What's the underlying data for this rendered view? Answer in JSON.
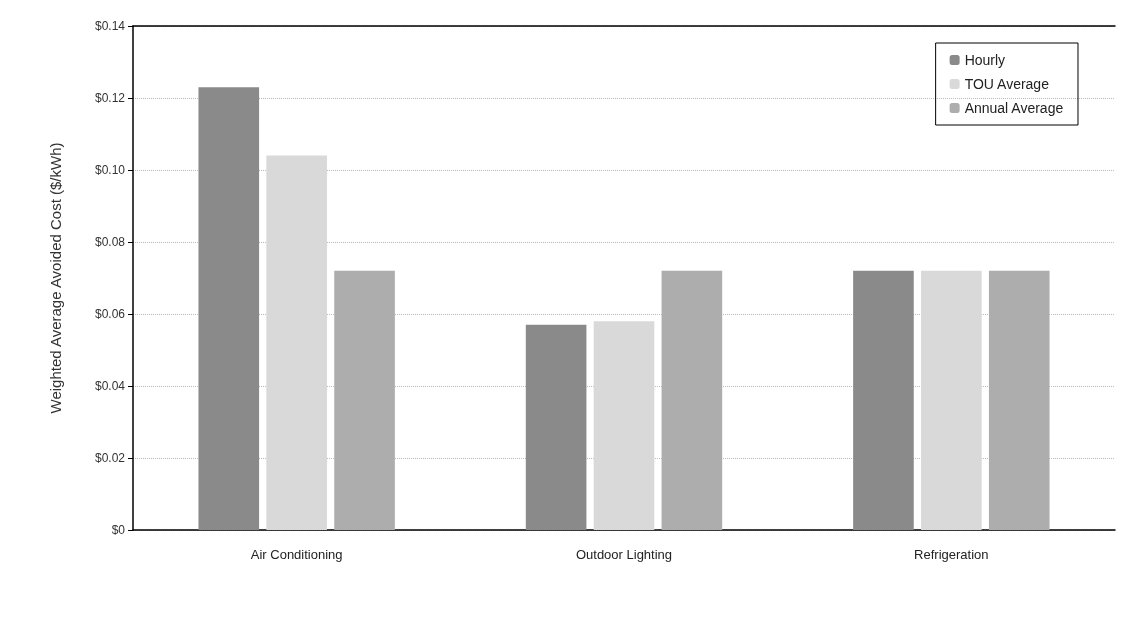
{
  "chart_data": {
    "type": "bar",
    "ylabel": "Weighted Average Avoided Cost ($/kWh)",
    "categories": [
      "Air Conditioning",
      "Outdoor Lighting",
      "Refrigeration"
    ],
    "series": [
      {
        "name": "Hourly",
        "color": "#8a8a8a",
        "values": [
          0.123,
          0.057,
          0.072
        ]
      },
      {
        "name": "TOU Average",
        "color": "#d9d9d9",
        "values": [
          0.104,
          0.058,
          0.072
        ]
      },
      {
        "name": "Annual Average",
        "color": "#adadad",
        "values": [
          0.072,
          0.072,
          0.072
        ]
      }
    ],
    "ylim": [
      0,
      0.14
    ],
    "yticks": [
      {
        "value": 0,
        "label": "$0"
      },
      {
        "value": 0.02,
        "label": "$0.02"
      },
      {
        "value": 0.04,
        "label": "$0.04"
      },
      {
        "value": 0.06,
        "label": "$0.06"
      },
      {
        "value": 0.08,
        "label": "$0.08"
      },
      {
        "value": 0.1,
        "label": "$0.10"
      },
      {
        "value": 0.12,
        "label": "$0.12"
      },
      {
        "value": 0.14,
        "label": "$0.14"
      }
    ],
    "grid": "y",
    "legend": "top right"
  }
}
